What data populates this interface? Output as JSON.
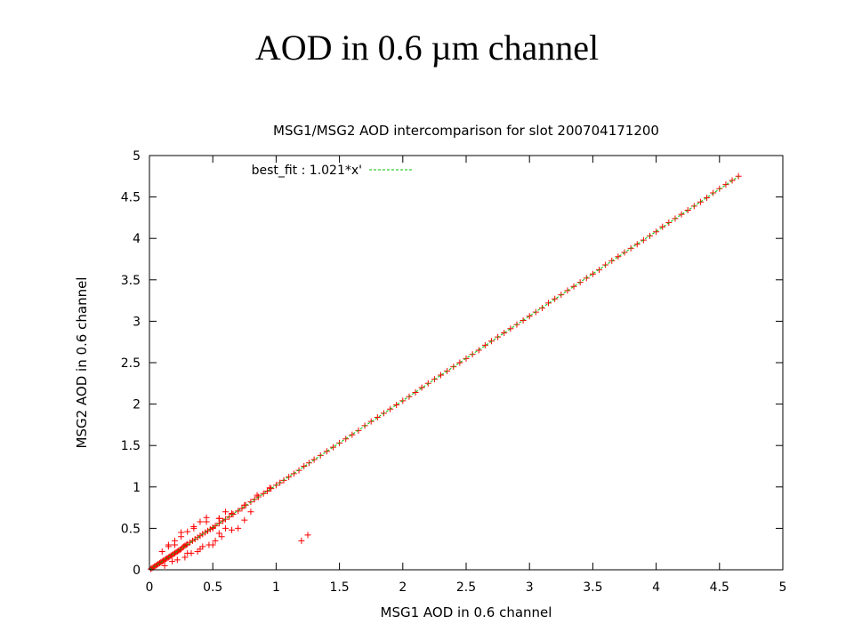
{
  "slide": {
    "title": "AOD in 0.6 µm channel"
  },
  "chart_data": {
    "type": "scatter",
    "title": "MSG1/MSG2 AOD intercomparison for slot 200704171200",
    "xlabel": "MSG1 AOD in 0.6 channel",
    "ylabel": "MSG2 AOD in 0.6 channel",
    "xlim": [
      0,
      5
    ],
    "ylim": [
      0,
      5
    ],
    "x_ticks": [
      "0",
      "0.5",
      "1",
      "1.5",
      "2",
      "2.5",
      "3",
      "3.5",
      "4",
      "4.5",
      "5"
    ],
    "y_ticks": [
      "0",
      "0.5",
      "1",
      "1.5",
      "2",
      "2.5",
      "3",
      "3.5",
      "4",
      "4.5",
      "5"
    ],
    "grid": false,
    "legend_position": "top-left",
    "series": [
      {
        "name": "",
        "marker": "+",
        "color": "#ff0000",
        "x": [
          0.01,
          0.02,
          0.03,
          0.04,
          0.05,
          0.06,
          0.07,
          0.08,
          0.09,
          0.1,
          0.11,
          0.12,
          0.13,
          0.14,
          0.15,
          0.16,
          0.17,
          0.18,
          0.19,
          0.2,
          0.21,
          0.22,
          0.23,
          0.24,
          0.25,
          0.26,
          0.27,
          0.28,
          0.29,
          0.3,
          0.32,
          0.34,
          0.36,
          0.38,
          0.4,
          0.42,
          0.44,
          0.46,
          0.48,
          0.5,
          0.52,
          0.55,
          0.58,
          0.6,
          0.63,
          0.66,
          0.7,
          0.73,
          0.76,
          0.8,
          0.83,
          0.86,
          0.9,
          0.93,
          0.96,
          1.0,
          1.03,
          1.06,
          1.1,
          1.14,
          1.18,
          1.22,
          1.26,
          1.3,
          1.35,
          1.4,
          1.45,
          1.5,
          1.55,
          1.6,
          1.65,
          1.7,
          1.75,
          1.8,
          1.85,
          1.9,
          1.95,
          2.0,
          2.05,
          2.1,
          2.15,
          2.2,
          2.25,
          2.3,
          2.35,
          2.4,
          2.45,
          2.5,
          2.55,
          2.6,
          2.65,
          2.7,
          2.75,
          2.8,
          2.85,
          2.9,
          2.95,
          3.0,
          3.05,
          3.1,
          3.15,
          3.2,
          3.25,
          3.3,
          3.35,
          3.4,
          3.45,
          3.5,
          3.55,
          3.6,
          3.65,
          3.7,
          3.75,
          3.8,
          3.85,
          3.9,
          3.95,
          4.0,
          4.05,
          4.1,
          4.15,
          4.2,
          4.25,
          4.3,
          4.35,
          4.4,
          4.45,
          4.5,
          4.55,
          4.6,
          4.65,
          0.1,
          0.15,
          0.2,
          0.25,
          0.3,
          0.35,
          0.4,
          0.45,
          0.5,
          0.55,
          0.6,
          0.12,
          0.18,
          0.22,
          0.28,
          0.33,
          0.38,
          0.42,
          0.47,
          0.52,
          0.57,
          0.15,
          0.25,
          0.35,
          0.45,
          0.55,
          0.65,
          0.75,
          0.85,
          0.95,
          1.2,
          1.25,
          0.4,
          0.5,
          0.55,
          0.6,
          0.65,
          0.7,
          0.75,
          0.8,
          0.2,
          0.3
        ],
        "y": [
          0.01,
          0.02,
          0.03,
          0.04,
          0.05,
          0.06,
          0.07,
          0.08,
          0.09,
          0.1,
          0.11,
          0.12,
          0.13,
          0.14,
          0.15,
          0.16,
          0.17,
          0.18,
          0.19,
          0.2,
          0.21,
          0.22,
          0.23,
          0.24,
          0.25,
          0.27,
          0.28,
          0.29,
          0.3,
          0.31,
          0.33,
          0.35,
          0.37,
          0.39,
          0.41,
          0.43,
          0.45,
          0.47,
          0.49,
          0.51,
          0.53,
          0.56,
          0.59,
          0.61,
          0.64,
          0.67,
          0.71,
          0.74,
          0.78,
          0.82,
          0.85,
          0.88,
          0.92,
          0.95,
          0.98,
          1.02,
          1.05,
          1.08,
          1.12,
          1.16,
          1.2,
          1.25,
          1.29,
          1.33,
          1.38,
          1.43,
          1.48,
          1.53,
          1.58,
          1.63,
          1.68,
          1.74,
          1.79,
          1.84,
          1.89,
          1.94,
          1.99,
          2.04,
          2.09,
          2.14,
          2.2,
          2.25,
          2.3,
          2.35,
          2.4,
          2.45,
          2.5,
          2.55,
          2.6,
          2.65,
          2.71,
          2.76,
          2.81,
          2.86,
          2.91,
          2.96,
          3.01,
          3.06,
          3.11,
          3.16,
          3.22,
          3.27,
          3.32,
          3.37,
          3.42,
          3.47,
          3.52,
          3.57,
          3.62,
          3.68,
          3.73,
          3.78,
          3.83,
          3.88,
          3.93,
          3.98,
          4.03,
          4.08,
          4.14,
          4.19,
          4.24,
          4.29,
          4.34,
          4.39,
          4.44,
          4.49,
          4.55,
          4.6,
          4.65,
          4.7,
          4.75,
          0.22,
          0.28,
          0.35,
          0.4,
          0.46,
          0.52,
          0.58,
          0.63,
          0.5,
          0.62,
          0.7,
          0.05,
          0.1,
          0.12,
          0.15,
          0.2,
          0.22,
          0.28,
          0.3,
          0.35,
          0.4,
          0.3,
          0.45,
          0.5,
          0.58,
          0.62,
          0.68,
          0.78,
          0.9,
          0.99,
          0.35,
          0.42,
          0.25,
          0.3,
          0.44,
          0.5,
          0.48,
          0.5,
          0.6,
          0.7,
          0.3,
          0.2
        ]
      }
    ],
    "fit": {
      "label": "best_fit : 1.021*x'",
      "slope": 1.021,
      "color": "#00c000",
      "dash": "dashed"
    }
  }
}
